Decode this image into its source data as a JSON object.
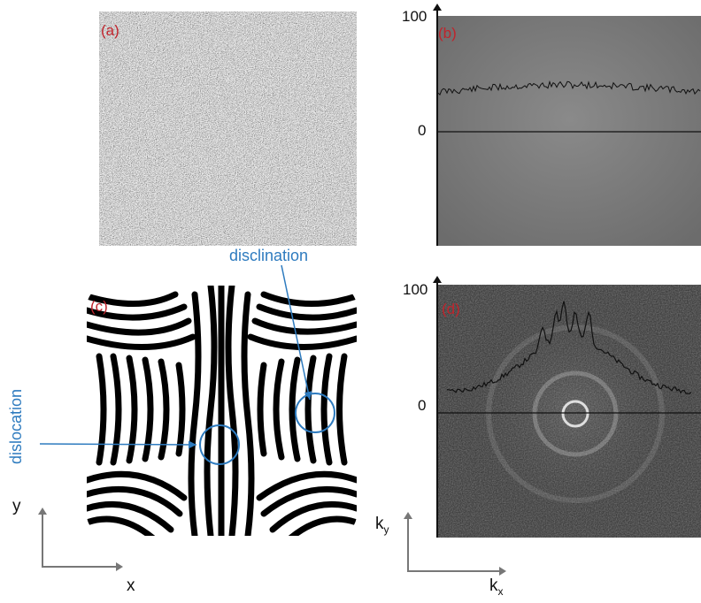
{
  "panels": {
    "a": {
      "label": "(a)"
    },
    "b": {
      "label": "(b)",
      "y_top": "100",
      "y_zero": "0"
    },
    "c": {
      "label": "(c)"
    },
    "d": {
      "label": "(d)",
      "y_top": "100",
      "y_zero": "0"
    }
  },
  "real_axes": {
    "x": "x",
    "y": "y"
  },
  "k_axes": {
    "x": "k",
    "x_sub": "x",
    "y": "k",
    "y_sub": "y"
  },
  "annotations": {
    "disclination": "disclination",
    "dislocation": "dislocation"
  },
  "colors": {
    "panel_label": "#c0242c",
    "annotation": "#2e7bbf"
  },
  "icons": [
    "pattern-image",
    "noise-image",
    "spectrum-image"
  ]
}
